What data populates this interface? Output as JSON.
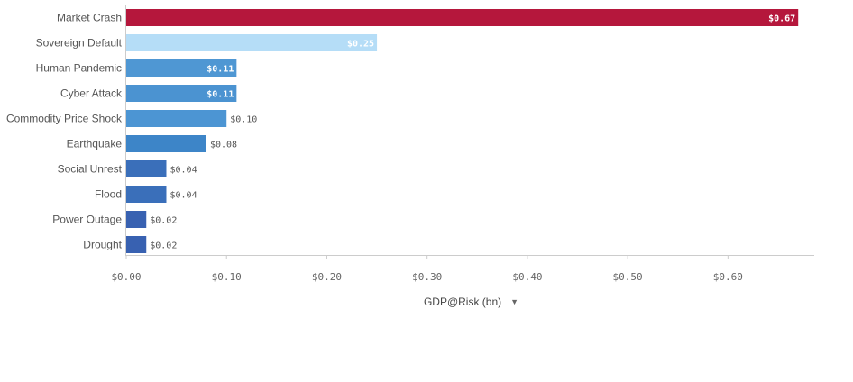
{
  "chart_data": {
    "type": "bar",
    "orientation": "horizontal",
    "categories": [
      "Market Crash",
      "Sovereign Default",
      "Human Pandemic",
      "Cyber Attack",
      "Commodity Price Shock",
      "Earthquake",
      "Social Unrest",
      "Flood",
      "Power Outage",
      "Drought"
    ],
    "values": [
      0.67,
      0.25,
      0.11,
      0.11,
      0.1,
      0.08,
      0.04,
      0.04,
      0.02,
      0.02
    ],
    "value_labels": [
      "$0.67",
      "$0.25",
      "$0.11",
      "$0.11",
      "$0.10",
      "$0.08",
      "$0.04",
      "$0.04",
      "$0.02",
      "$0.02"
    ],
    "bar_colors": [
      "#b5173c",
      "#b5ddf7",
      "#4f97d3",
      "#4b93d1",
      "#4c95d3",
      "#3d85c8",
      "#3a6fba",
      "#3a6fba",
      "#3861b1",
      "#3861b1"
    ],
    "xlabel": "GDP@Risk (bn)",
    "ylabel": "",
    "xlim": [
      0,
      0.686
    ],
    "xticks": [
      0,
      0.1,
      0.2,
      0.3,
      0.4,
      0.5,
      0.6
    ],
    "xtick_labels": [
      "$0.00",
      "$0.10",
      "$0.20",
      "$0.30",
      "$0.40",
      "$0.50",
      "$0.60"
    ],
    "grid": false,
    "legend": "none"
  },
  "axis": {
    "title": "GDP@Risk (bn)",
    "dropdown_icon": "▼"
  }
}
